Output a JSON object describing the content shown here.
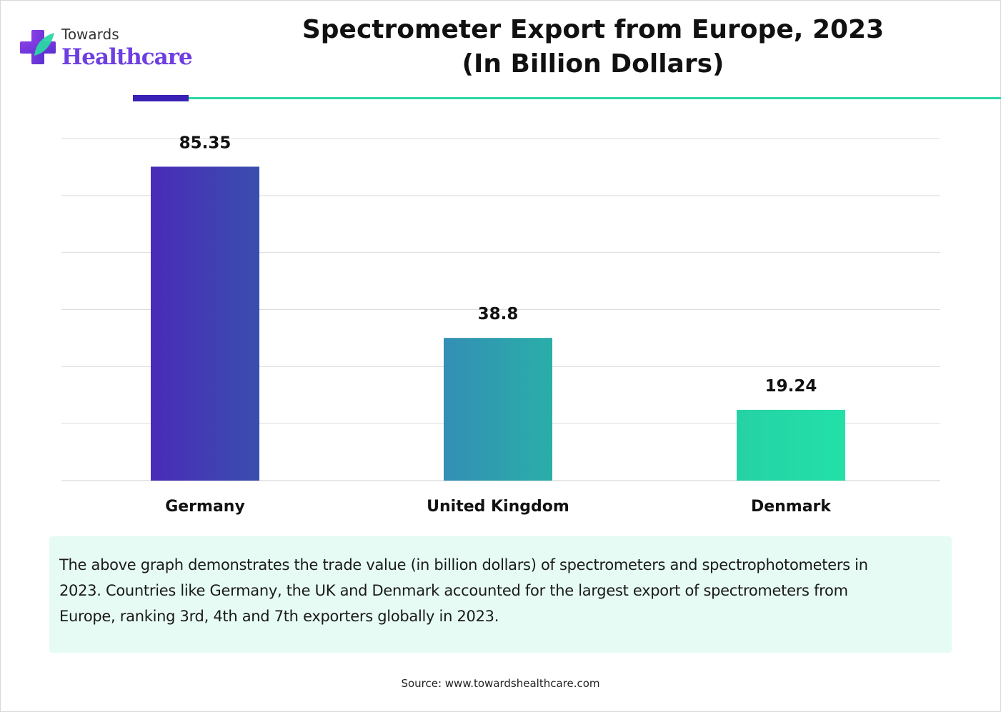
{
  "logo": {
    "line1": "Towards",
    "line2": "Healthcare"
  },
  "title": {
    "line1": "Spectrometer Export from Europe, 2023",
    "line2": "(In Billion Dollars)"
  },
  "chart_data": {
    "type": "bar",
    "title": "Spectrometer Export from Europe, 2023 (In Billion Dollars)",
    "categories": [
      "Germany",
      "United Kingdom",
      "Denmark"
    ],
    "values": [
      85.35,
      38.8,
      19.24
    ],
    "value_labels": [
      "85.35",
      "38.8",
      "19.24"
    ],
    "xlabel": "",
    "ylabel": "",
    "ylim": [
      0,
      93
    ],
    "grid": true,
    "bar_colors": [
      [
        "#4a2bb8",
        "#3a4eae"
      ],
      [
        "#338fb5",
        "#2aaea8"
      ],
      [
        "#26d2a5",
        "#22e0a8"
      ]
    ]
  },
  "description": "The above graph demonstrates the trade value (in billion dollars) of spectrometers and spectrophotometers in 2023. Countries like Germany, the UK and Denmark accounted for the largest export of spectrometers from Europe, ranking 3rd, 4th and 7th exporters globally in 2023.",
  "source": "Source: www.towardshealthcare.com",
  "colors": {
    "accent": "#3a21b5",
    "teal": "#2ad6a6",
    "brand_purple": "#6d3fe0",
    "caption_bg": "#e6fbf4"
  }
}
